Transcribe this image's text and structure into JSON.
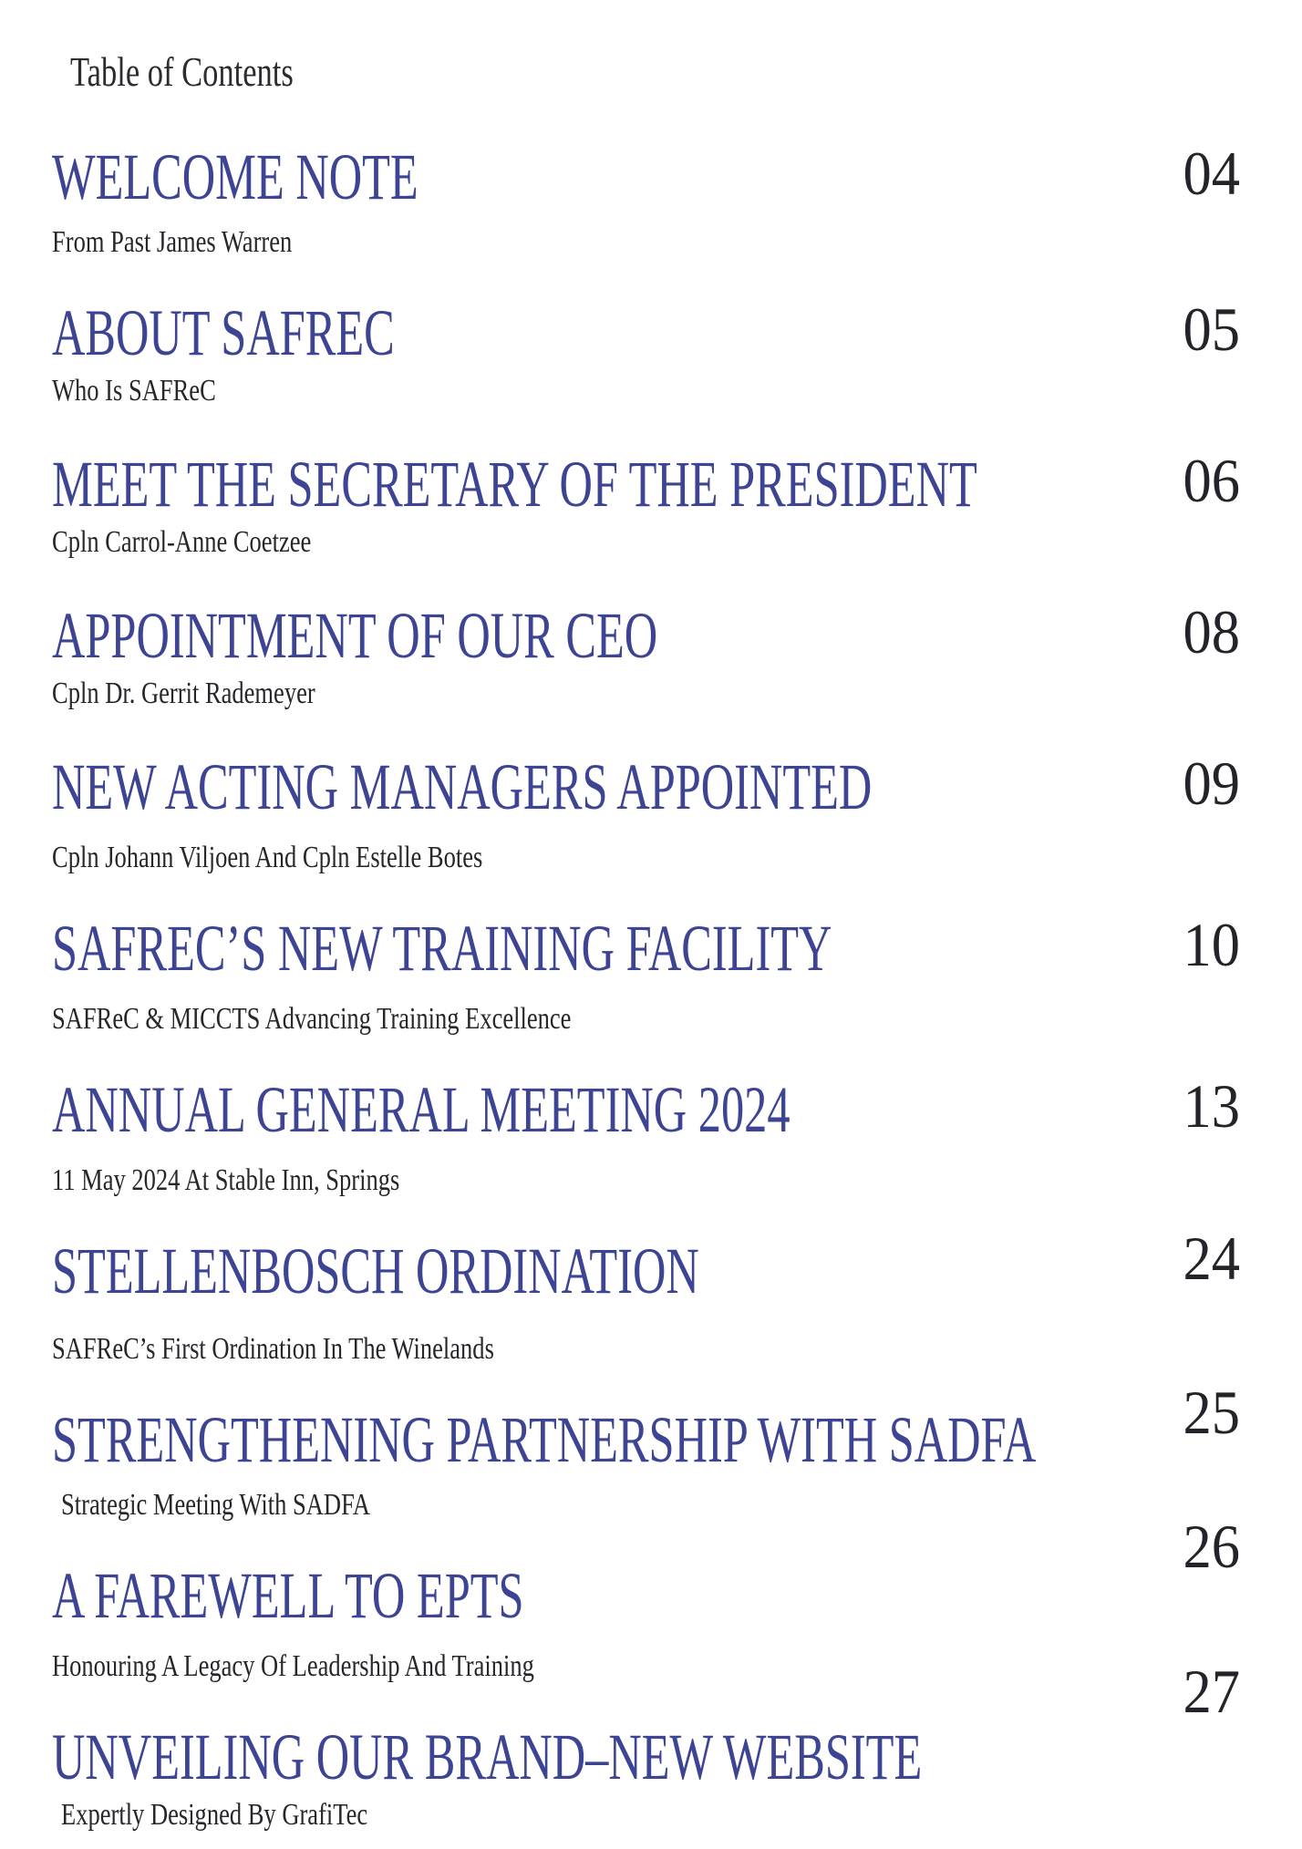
{
  "header": {
    "title": "Table of Contents"
  },
  "colors": {
    "title_blue": "#3d4493",
    "text_dark": "#26262b",
    "page_number_dark": "#232329",
    "background": "#ffffff"
  },
  "toc": {
    "entries": [
      {
        "title": "WELCOME NOTE",
        "subtitle": "From Past James Warren",
        "page": "04"
      },
      {
        "title": "ABOUT SAFREC",
        "subtitle": "Who Is SAFReC",
        "page": "05"
      },
      {
        "title": "MEET THE SECRETARY OF THE PRESIDENT",
        "subtitle": "Cpln Carrol-Anne Coetzee",
        "page": "06"
      },
      {
        "title": "APPOINTMENT OF OUR CEO",
        "subtitle": "Cpln Dr. Gerrit Rademeyer",
        "page": "08"
      },
      {
        "title": "NEW ACTING MANAGERS APPOINTED",
        "subtitle": "Cpln Johann Viljoen And Cpln Estelle Botes",
        "page": "09"
      },
      {
        "title": "SAFREC’S NEW TRAINING FACILITY",
        "subtitle": "SAFReC & MICCTS Advancing Training Excellence",
        "page": "10"
      },
      {
        "title": "ANNUAL GENERAL MEETING 2024",
        "subtitle": "11 May 2024 At Stable Inn, Springs",
        "page": "13"
      },
      {
        "title": "STELLENBOSCH ORDINATION",
        "subtitle": "SAFReC’s First Ordination In The Winelands",
        "page": "24"
      },
      {
        "title": "STRENGTHENING PARTNERSHIP WITH SADFA",
        "subtitle": "Strategic Meeting With SADFA",
        "page": "25"
      },
      {
        "title": "A FAREWELL TO EPTS",
        "subtitle": "Honouring A Legacy Of Leadership And Training",
        "page": "26"
      },
      {
        "title": "UNVEILING OUR BRAND–NEW WEBSITE",
        "subtitle": "Expertly Designed By GrafiTec",
        "page": "27"
      }
    ]
  }
}
